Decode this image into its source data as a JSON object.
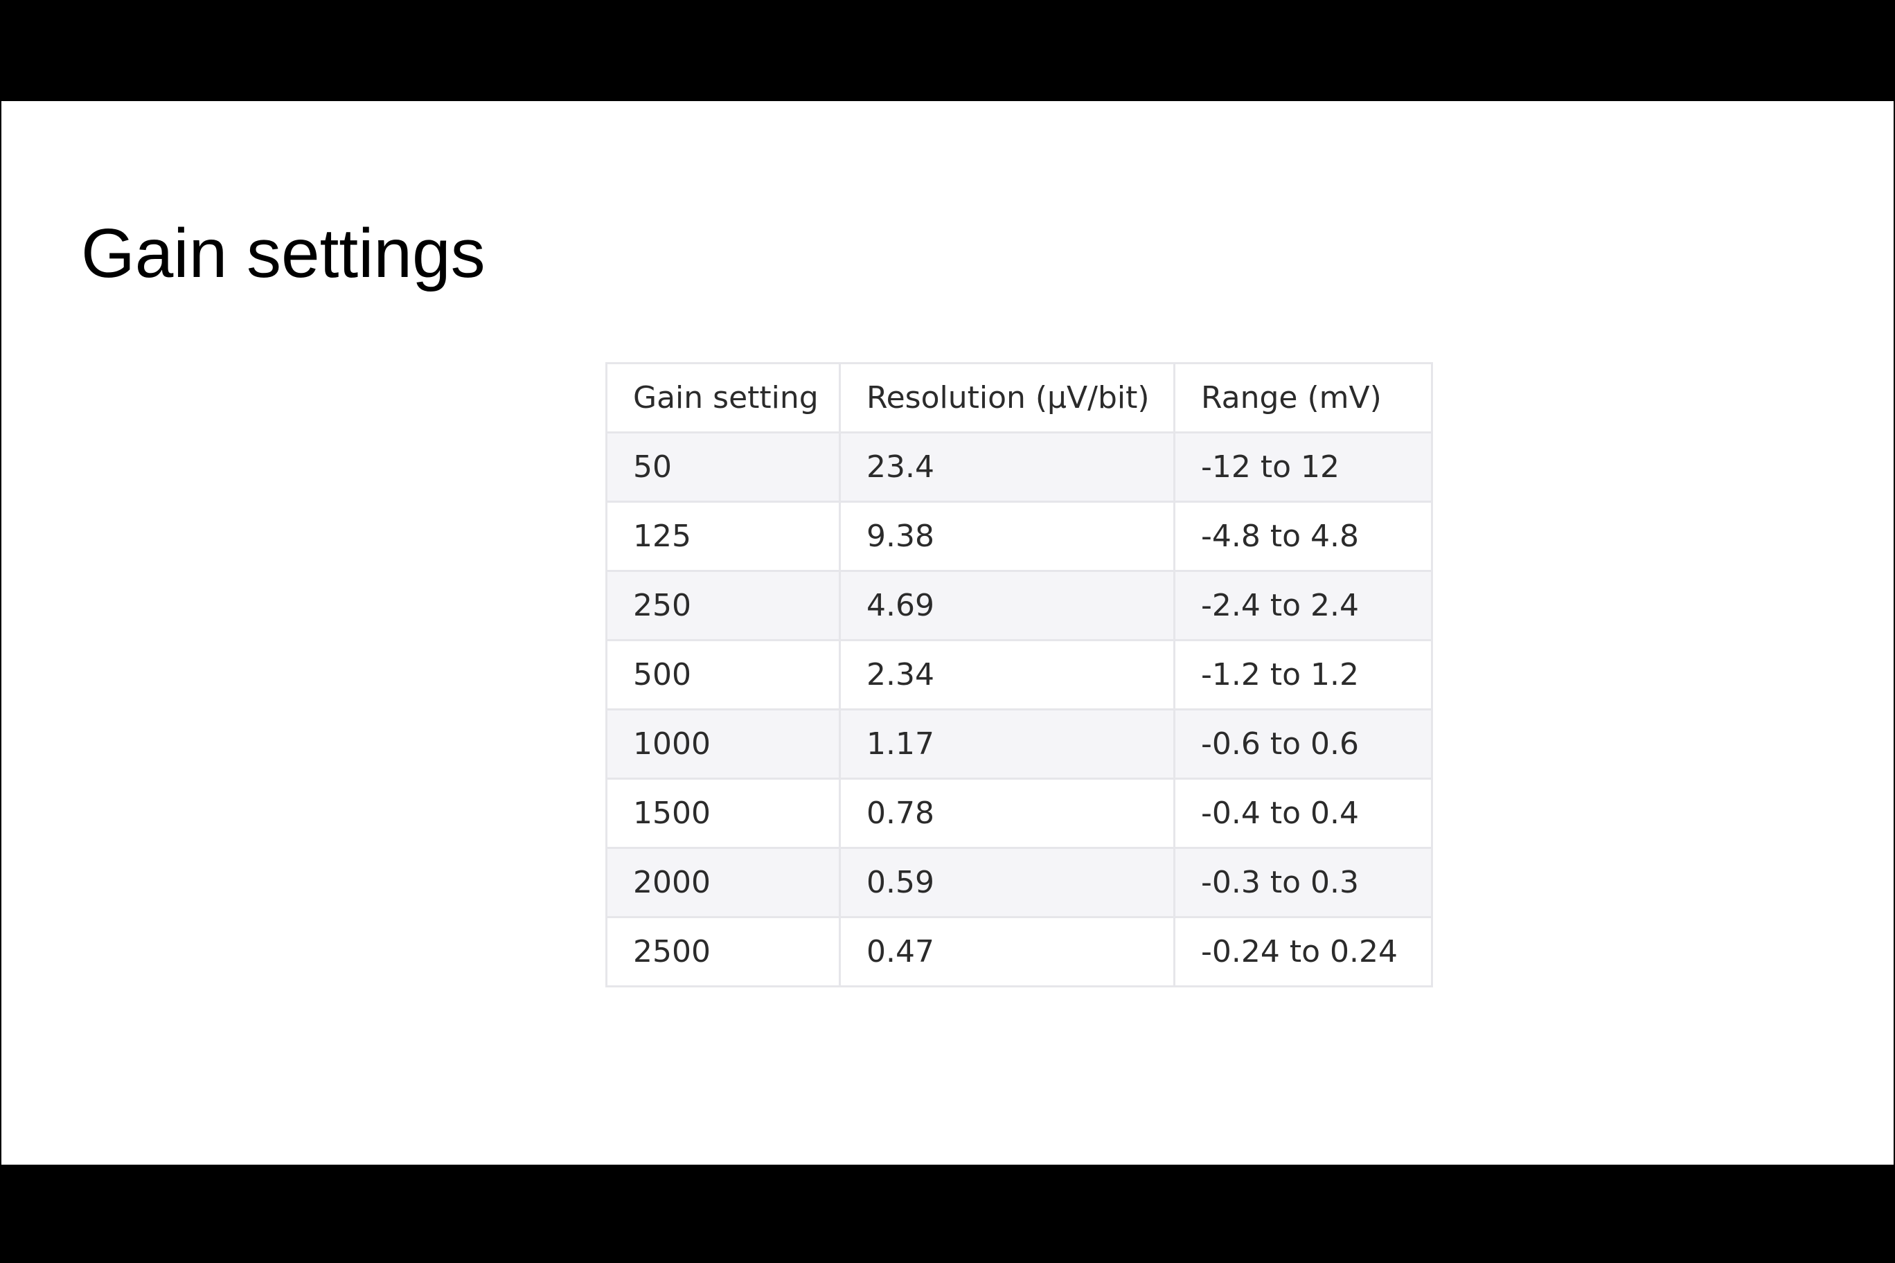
{
  "slide": {
    "title": "Gain settings"
  },
  "table": {
    "headers": [
      "Gain setting",
      "Resolution (µV/bit)",
      "Range (mV)"
    ],
    "rows": [
      [
        "50",
        "23.4",
        "-12 to 12"
      ],
      [
        "125",
        "9.38",
        "-4.8 to 4.8"
      ],
      [
        "250",
        "4.69",
        "-2.4 to 2.4"
      ],
      [
        "500",
        "2.34",
        "-1.2 to 1.2"
      ],
      [
        "1000",
        "1.17",
        "-0.6 to 0.6"
      ],
      [
        "1500",
        "0.78",
        "-0.4 to 0.4"
      ],
      [
        "2000",
        "0.59",
        "-0.3 to 0.3"
      ],
      [
        "2500",
        "0.47",
        "-0.24 to 0.24"
      ]
    ]
  },
  "colors": {
    "background": "#000000",
    "slide": "#ffffff",
    "stripe": "#f5f5f8",
    "border": "#e6e6ea",
    "text": "#2b2b2b"
  }
}
